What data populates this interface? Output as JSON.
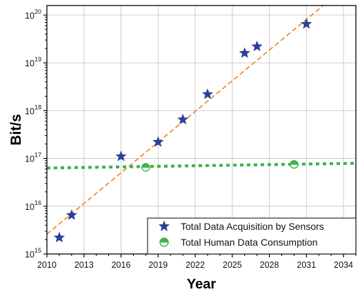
{
  "chart_data": {
    "type": "scatter",
    "xlabel": "Year",
    "ylabel": "Bit/s",
    "xlim": [
      2010,
      2035
    ],
    "ylim_log10": [
      15,
      20.2
    ],
    "yscale": "log",
    "grid": true,
    "legend_position": "bottom-right",
    "x_ticks": [
      "2010",
      "2013",
      "2016",
      "2019",
      "2022",
      "2025",
      "2028",
      "2031",
      "2034"
    ],
    "y_ticks": [
      {
        "base": "10",
        "exp": "15"
      },
      {
        "base": "10",
        "exp": "16"
      },
      {
        "base": "10",
        "exp": "17"
      },
      {
        "base": "10",
        "exp": "18"
      },
      {
        "base": "10",
        "exp": "19"
      },
      {
        "base": "10",
        "exp": "20"
      }
    ],
    "series": [
      {
        "name": "Total Data Acquisition by Sensors",
        "marker": "star",
        "color": "#2e3f98",
        "points": [
          {
            "x": 2011,
            "y": 2200000000000000.0
          },
          {
            "x": 2012,
            "y": 6500000000000000.0
          },
          {
            "x": 2016,
            "y": 1.1e+17
          },
          {
            "x": 2019,
            "y": 2.2e+17
          },
          {
            "x": 2021,
            "y": 6.5e+17
          },
          {
            "x": 2023,
            "y": 2.2e+18
          },
          {
            "x": 2026,
            "y": 1.6e+19
          },
          {
            "x": 2027,
            "y": 2.2e+19
          },
          {
            "x": 2031,
            "y": 6.5e+19
          }
        ],
        "trend": {
          "style": "dashed",
          "color": "#f28b30",
          "from": {
            "x": 2010,
            "y": 2600000000000000.0
          },
          "to": {
            "x": 2032.5,
            "y": 1.7e+20
          }
        }
      },
      {
        "name": "Total Human Data Consumption",
        "marker": "half-filled-circle",
        "color": "#3cb44b",
        "points": [
          {
            "x": 2018,
            "y": 6.5e+16
          },
          {
            "x": 2030,
            "y": 7.5e+16
          }
        ],
        "trend": {
          "style": "dotted",
          "color": "#3cb44b",
          "from": {
            "x": 2010,
            "y": 6.3e+16
          },
          "to": {
            "x": 2035,
            "y": 7.9e+16
          }
        }
      }
    ]
  },
  "colors": {
    "star": "#2e3f98",
    "orange_line": "#f28b30",
    "green": "#3cb44b",
    "grid": "#cccccc"
  }
}
